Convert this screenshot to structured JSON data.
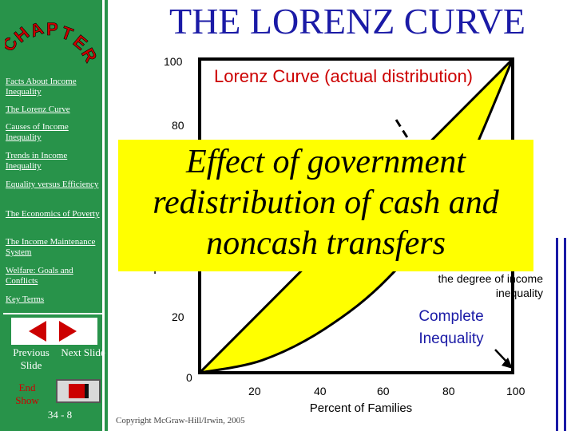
{
  "title": "THE LORENZ CURVE",
  "chapter_logo": "CHAPTER",
  "sidebar": {
    "items": [
      {
        "label": "Facts About Income Inequality"
      },
      {
        "label": "The Lorenz Curve"
      },
      {
        "label": "Causes of Income Inequality"
      },
      {
        "label": "Trends in Income Inequality"
      },
      {
        "label": "Equality versus Efficiency"
      },
      {
        "label": "The Economics of Poverty"
      },
      {
        "label": "The Income Maintenance System"
      },
      {
        "label": "Welfare: Goals and Conflicts"
      },
      {
        "label": "Key Terms"
      }
    ],
    "previous_label": "Previous Slide",
    "next_label": "Next Slide",
    "end_show_label": "End Show",
    "slide_number": "34 - 8"
  },
  "overlay": {
    "text": "Effect of government redistribution of cash and noncash transfers"
  },
  "annotations": {
    "lorenz": "Lorenz Curve (actual distribution)",
    "degree": "the degree of income inequality",
    "complete": "Complete Inequality",
    "ylabel_fragment": "P"
  },
  "copyright": "Copyright McGraw-Hill/Irwin, 2005",
  "colors": {
    "sidebar": "#28934a",
    "title": "#1a1aa6",
    "curve_fill": "#ffff00",
    "lorenz_label": "#cc0000",
    "logo": "#cc0000"
  },
  "chart_data": {
    "type": "line",
    "xlabel": "Percent of Families",
    "ylabel": "",
    "xlim": [
      0,
      100
    ],
    "ylim": [
      0,
      100
    ],
    "x_ticks": [
      "20",
      "40",
      "60",
      "80",
      "100"
    ],
    "y_ticks": [
      "0",
      "20",
      "80",
      "100"
    ],
    "series": [
      {
        "name": "",
        "x": [
          0,
          100
        ],
        "y": [
          0,
          100
        ]
      },
      {
        "name": "",
        "x": [
          0,
          20,
          40,
          60,
          80,
          100
        ],
        "y": [
          0,
          4,
          14,
          30,
          55,
          100
        ]
      }
    ]
  }
}
